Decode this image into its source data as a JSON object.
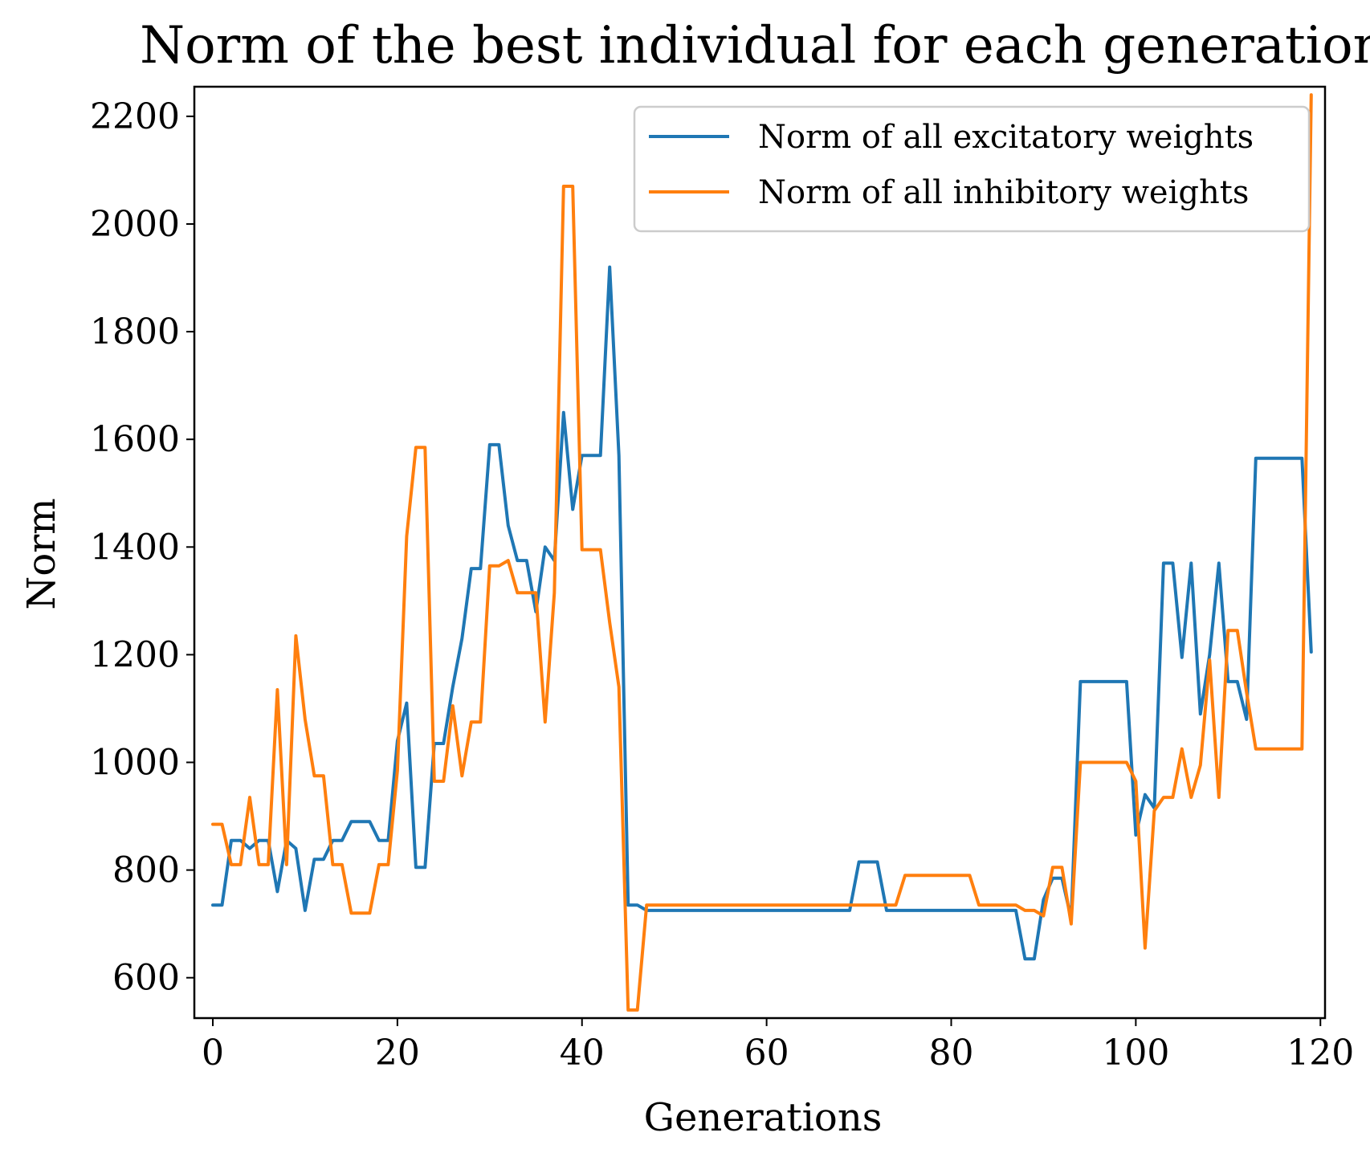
{
  "chart_data": {
    "type": "line",
    "title": "Norm of the best individual for each generation",
    "xlabel": "Generations",
    "ylabel": "Norm",
    "xlim": [
      -2,
      120.5
    ],
    "ylim": [
      525,
      2255
    ],
    "xticks": [
      0,
      20,
      40,
      60,
      80,
      100,
      120
    ],
    "yticks": [
      600,
      800,
      1000,
      1200,
      1400,
      1600,
      1800,
      2000,
      2200
    ],
    "grid": false,
    "legend_position": "top-right",
    "series": [
      {
        "name": "Norm of all excitatory weights",
        "color": "#1f77b4",
        "x": [
          0,
          1,
          2,
          3,
          4,
          5,
          6,
          7,
          8,
          9,
          10,
          11,
          12,
          13,
          14,
          15,
          16,
          17,
          18,
          19,
          20,
          21,
          22,
          23,
          24,
          25,
          26,
          27,
          28,
          29,
          30,
          31,
          32,
          33,
          34,
          35,
          36,
          37,
          38,
          39,
          40,
          41,
          42,
          43,
          44,
          45,
          46,
          47,
          48,
          49,
          50,
          51,
          52,
          53,
          54,
          55,
          56,
          57,
          58,
          59,
          60,
          61,
          62,
          63,
          64,
          65,
          66,
          67,
          68,
          69,
          70,
          71,
          72,
          73,
          74,
          75,
          76,
          77,
          78,
          79,
          80,
          81,
          82,
          83,
          84,
          85,
          86,
          87,
          88,
          89,
          90,
          91,
          92,
          93,
          94,
          95,
          96,
          97,
          98,
          99,
          100,
          101,
          102,
          103,
          104,
          105,
          106,
          107,
          108,
          109,
          110,
          111,
          112,
          113,
          114,
          115,
          116,
          117,
          118,
          119
        ],
        "y": [
          735,
          735,
          855,
          855,
          840,
          855,
          855,
          760,
          855,
          840,
          725,
          820,
          820,
          855,
          855,
          890,
          890,
          890,
          855,
          855,
          1040,
          1110,
          805,
          805,
          1035,
          1035,
          1140,
          1230,
          1360,
          1360,
          1590,
          1590,
          1440,
          1375,
          1375,
          1280,
          1400,
          1375,
          1650,
          1470,
          1570,
          1570,
          1570,
          1920,
          1570,
          735,
          735,
          725,
          725,
          725,
          725,
          725,
          725,
          725,
          725,
          725,
          725,
          725,
          725,
          725,
          725,
          725,
          725,
          725,
          725,
          725,
          725,
          725,
          725,
          725,
          815,
          815,
          815,
          725,
          725,
          725,
          725,
          725,
          725,
          725,
          725,
          725,
          725,
          725,
          725,
          725,
          725,
          725,
          635,
          635,
          745,
          785,
          785,
          710,
          1150,
          1150,
          1150,
          1150,
          1150,
          1150,
          865,
          940,
          915,
          1370,
          1370,
          1195,
          1370,
          1090,
          1200,
          1370,
          1150,
          1150,
          1080,
          1565,
          1565,
          1565,
          1565,
          1565,
          1565,
          1205
        ]
      },
      {
        "name": "Norm of all inhibitory weights",
        "color": "#ff7f0e",
        "x": [
          0,
          1,
          2,
          3,
          4,
          5,
          6,
          7,
          8,
          9,
          10,
          11,
          12,
          13,
          14,
          15,
          16,
          17,
          18,
          19,
          20,
          21,
          22,
          23,
          24,
          25,
          26,
          27,
          28,
          29,
          30,
          31,
          32,
          33,
          34,
          35,
          36,
          37,
          38,
          39,
          40,
          41,
          42,
          43,
          44,
          45,
          46,
          47,
          48,
          49,
          50,
          51,
          52,
          53,
          54,
          55,
          56,
          57,
          58,
          59,
          60,
          61,
          62,
          63,
          64,
          65,
          66,
          67,
          68,
          69,
          70,
          71,
          72,
          73,
          74,
          75,
          76,
          77,
          78,
          79,
          80,
          81,
          82,
          83,
          84,
          85,
          86,
          87,
          88,
          89,
          90,
          91,
          92,
          93,
          94,
          95,
          96,
          97,
          98,
          99,
          100,
          101,
          102,
          103,
          104,
          105,
          106,
          107,
          108,
          109,
          110,
          111,
          112,
          113,
          114,
          115,
          116,
          117,
          118,
          119
        ],
        "y": [
          885,
          885,
          810,
          810,
          935,
          810,
          810,
          1135,
          810,
          1235,
          1080,
          975,
          975,
          810,
          810,
          720,
          720,
          720,
          810,
          810,
          985,
          1420,
          1585,
          1585,
          965,
          965,
          1105,
          975,
          1075,
          1075,
          1365,
          1365,
          1375,
          1315,
          1315,
          1315,
          1075,
          1315,
          2070,
          2070,
          1395,
          1395,
          1395,
          1260,
          1140,
          540,
          540,
          735,
          735,
          735,
          735,
          735,
          735,
          735,
          735,
          735,
          735,
          735,
          735,
          735,
          735,
          735,
          735,
          735,
          735,
          735,
          735,
          735,
          735,
          735,
          735,
          735,
          735,
          735,
          735,
          790,
          790,
          790,
          790,
          790,
          790,
          790,
          790,
          735,
          735,
          735,
          735,
          735,
          725,
          725,
          715,
          805,
          805,
          700,
          1000,
          1000,
          1000,
          1000,
          1000,
          1000,
          965,
          655,
          910,
          935,
          935,
          1025,
          935,
          995,
          1190,
          935,
          1245,
          1245,
          1130,
          1025,
          1025,
          1025,
          1025,
          1025,
          1025,
          2240
        ]
      }
    ]
  }
}
